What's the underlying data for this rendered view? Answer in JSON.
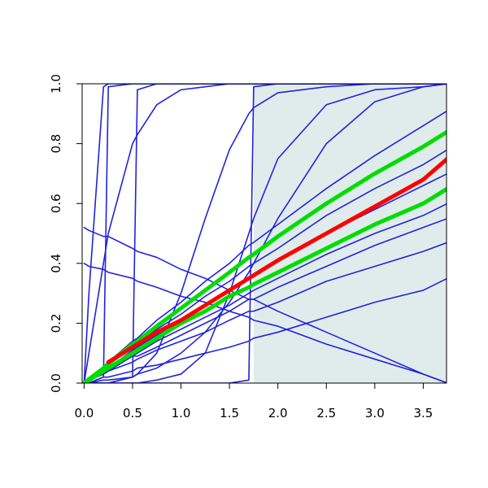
{
  "chart_data": {
    "type": "line",
    "color": "#2222dd",
    "shade": {
      "x": [
        1.75,
        3.74
      ],
      "color": "#e0ecec"
    },
    "xlim": [
      -0.02,
      3.74
    ],
    "ylim": [
      0,
      1
    ],
    "xticks": [
      {
        "value": 0,
        "label": "0.0"
      },
      0.5,
      {
        "value": 1,
        "label": "1.0"
      },
      1.5,
      {
        "value": 2,
        "label": "2.0"
      },
      2.5,
      {
        "value": 3,
        "label": "3.0"
      },
      3.5
    ],
    "yticks": [
      {
        "value": 0,
        "label": "0.0"
      },
      0.2,
      0.4,
      0.6,
      0.8,
      {
        "value": 1,
        "label": "1.0"
      }
    ],
    "x": [
      0,
      0.05,
      0.2,
      0.25,
      0.5,
      0.55,
      0.75,
      1,
      1.25,
      1.5,
      1.7,
      1.75,
      2,
      2.5,
      3,
      3.5,
      3.75
    ],
    "series": [
      {
        "values": [
          0,
          0.01,
          0.05,
          0.07,
          0.14,
          0.15,
          0.21,
          0.27,
          0.34,
          0.4,
          0.46,
          0.47,
          0.53,
          0.65,
          0.76,
          0.86,
          0.91
        ]
      },
      {
        "values": [
          0,
          0.01,
          0.05,
          0.06,
          0.12,
          0.13,
          0.18,
          0.23,
          0.29,
          0.34,
          0.39,
          0.4,
          0.45,
          0.56,
          0.65,
          0.73,
          0.78
        ]
      },
      {
        "values": [
          0,
          0.01,
          0.04,
          0.05,
          0.11,
          0.12,
          0.16,
          0.21,
          0.26,
          0.31,
          0.35,
          0.36,
          0.41,
          0.5,
          0.58,
          0.66,
          0.7
        ]
      },
      {
        "values": [
          0,
          0.01,
          0.04,
          0.05,
          0.09,
          0.1,
          0.14,
          0.18,
          0.22,
          0.26,
          0.3,
          0.31,
          0.35,
          0.43,
          0.5,
          0.56,
          0.6
        ]
      },
      {
        "values": [
          0,
          0.01,
          0.03,
          0.04,
          0.09,
          0.09,
          0.12,
          0.16,
          0.2,
          0.24,
          0.28,
          0.28,
          0.32,
          0.39,
          0.46,
          0.52,
          0.55
        ]
      },
      {
        "values": [
          0,
          0.01,
          0.03,
          0.04,
          0.07,
          0.08,
          0.11,
          0.14,
          0.17,
          0.21,
          0.24,
          0.24,
          0.27,
          0.34,
          0.39,
          0.44,
          0.47
        ]
      },
      {
        "values": [
          0,
          0,
          0.02,
          0.02,
          0.04,
          0.05,
          0.06,
          0.08,
          0.1,
          0.12,
          0.14,
          0.15,
          0.17,
          0.22,
          0.27,
          0.31,
          0.35
        ]
      },
      {
        "values": [
          0.52,
          0.51,
          0.49,
          0.49,
          0.45,
          0.44,
          0.42,
          0.38,
          0.35,
          0.31,
          0.28,
          0.28,
          0.24,
          0.17,
          0.1,
          0.03,
          0
        ]
      },
      {
        "values": [
          0.4,
          0.39,
          0.38,
          0.37,
          0.35,
          0.34,
          0.32,
          0.29,
          0.27,
          0.24,
          0.22,
          0.21,
          0.19,
          0.13,
          0.08,
          0.03,
          0
        ]
      },
      {
        "values": [
          0,
          0.3,
          0.99,
          1,
          1,
          1,
          1,
          1,
          1,
          1,
          1,
          1,
          1,
          1,
          1,
          1,
          1
        ]
      },
      {
        "values": [
          0,
          0,
          0.02,
          0.99,
          1,
          1,
          1,
          1,
          1,
          1,
          1,
          1,
          1,
          1,
          1,
          1,
          1
        ]
      },
      {
        "values": [
          0,
          0,
          0,
          0,
          0.02,
          0.98,
          1,
          1,
          1,
          1,
          1,
          1,
          1,
          1,
          1,
          1,
          1
        ]
      },
      {
        "values": [
          0,
          0,
          0,
          0,
          0,
          0,
          0,
          0,
          0,
          0,
          0.01,
          0.99,
          1,
          1,
          1,
          1,
          1
        ]
      },
      {
        "values": [
          0,
          0,
          0,
          0,
          0.02,
          0.03,
          0.1,
          0.3,
          0.55,
          0.78,
          0.9,
          0.92,
          0.97,
          0.99,
          1,
          1,
          1
        ]
      },
      {
        "values": [
          0,
          0,
          0,
          0,
          0,
          0,
          0.01,
          0.03,
          0.1,
          0.3,
          0.5,
          0.55,
          0.75,
          0.93,
          0.98,
          0.99,
          1
        ]
      },
      {
        "values": [
          0,
          0,
          0.01,
          0.01,
          0.02,
          0.03,
          0.05,
          0.1,
          0.17,
          0.27,
          0.37,
          0.4,
          0.55,
          0.8,
          0.94,
          0.99,
          1
        ]
      },
      {
        "values": [
          0,
          0.1,
          0.4,
          0.5,
          0.8,
          0.83,
          0.93,
          0.98,
          0.99,
          1,
          1,
          1,
          1,
          1,
          1,
          1,
          1
        ]
      },
      {
        "color": "#00dd00",
        "values": [
          0,
          0.013,
          0.05,
          0.065,
          0.13,
          0.14,
          0.19,
          0.25,
          0.31,
          0.37,
          0.42,
          0.43,
          0.49,
          0.6,
          0.7,
          0.79,
          0.84
        ]
      },
      {
        "color": "#00dd00",
        "values": [
          0,
          0.01,
          0.04,
          0.05,
          0.1,
          0.11,
          0.15,
          0.2,
          0.24,
          0.29,
          0.32,
          0.33,
          0.37,
          0.45,
          0.53,
          0.6,
          0.65
        ]
      },
      {
        "color": "#ff0000",
        "values": [
          null,
          null,
          null,
          0.07,
          0.12,
          0.13,
          0.17,
          0.21,
          0.26,
          0.31,
          0.35,
          0.36,
          0.41,
          0.5,
          0.59,
          0.68,
          0.75
        ]
      }
    ]
  }
}
